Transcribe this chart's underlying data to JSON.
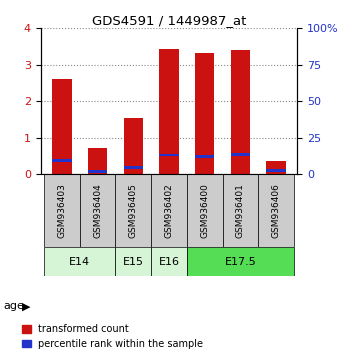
{
  "title": "GDS4591 / 1449987_at",
  "samples": [
    "GSM936403",
    "GSM936404",
    "GSM936405",
    "GSM936402",
    "GSM936400",
    "GSM936401",
    "GSM936406"
  ],
  "red_values": [
    2.62,
    0.72,
    1.55,
    3.43,
    3.32,
    3.42,
    0.38
  ],
  "blue_values": [
    0.38,
    0.07,
    0.18,
    0.53,
    0.5,
    0.55,
    0.1
  ],
  "age_groups": [
    {
      "label": "E14",
      "start": 0,
      "end": 2,
      "color": "#d6f5d6"
    },
    {
      "label": "E15",
      "start": 2,
      "end": 3,
      "color": "#d6f5d6"
    },
    {
      "label": "E16",
      "start": 3,
      "end": 4,
      "color": "#d6f5d6"
    },
    {
      "label": "E17.5",
      "start": 4,
      "end": 7,
      "color": "#55dd55"
    }
  ],
  "ylim": [
    0,
    4
  ],
  "yticks": [
    0,
    1,
    2,
    3,
    4
  ],
  "right_yticks": [
    0,
    25,
    50,
    75,
    100
  ],
  "right_ylim": [
    0,
    100
  ],
  "bar_color_red": "#cc1111",
  "bar_color_blue": "#2233cc",
  "bar_width": 0.55,
  "legend_red": "transformed count",
  "legend_blue": "percentile rank within the sample",
  "tick_label_color_left": "#cc1111",
  "tick_label_color_right": "#2233cc",
  "sample_bg": "#cccccc",
  "plot_bg": "#ffffff"
}
